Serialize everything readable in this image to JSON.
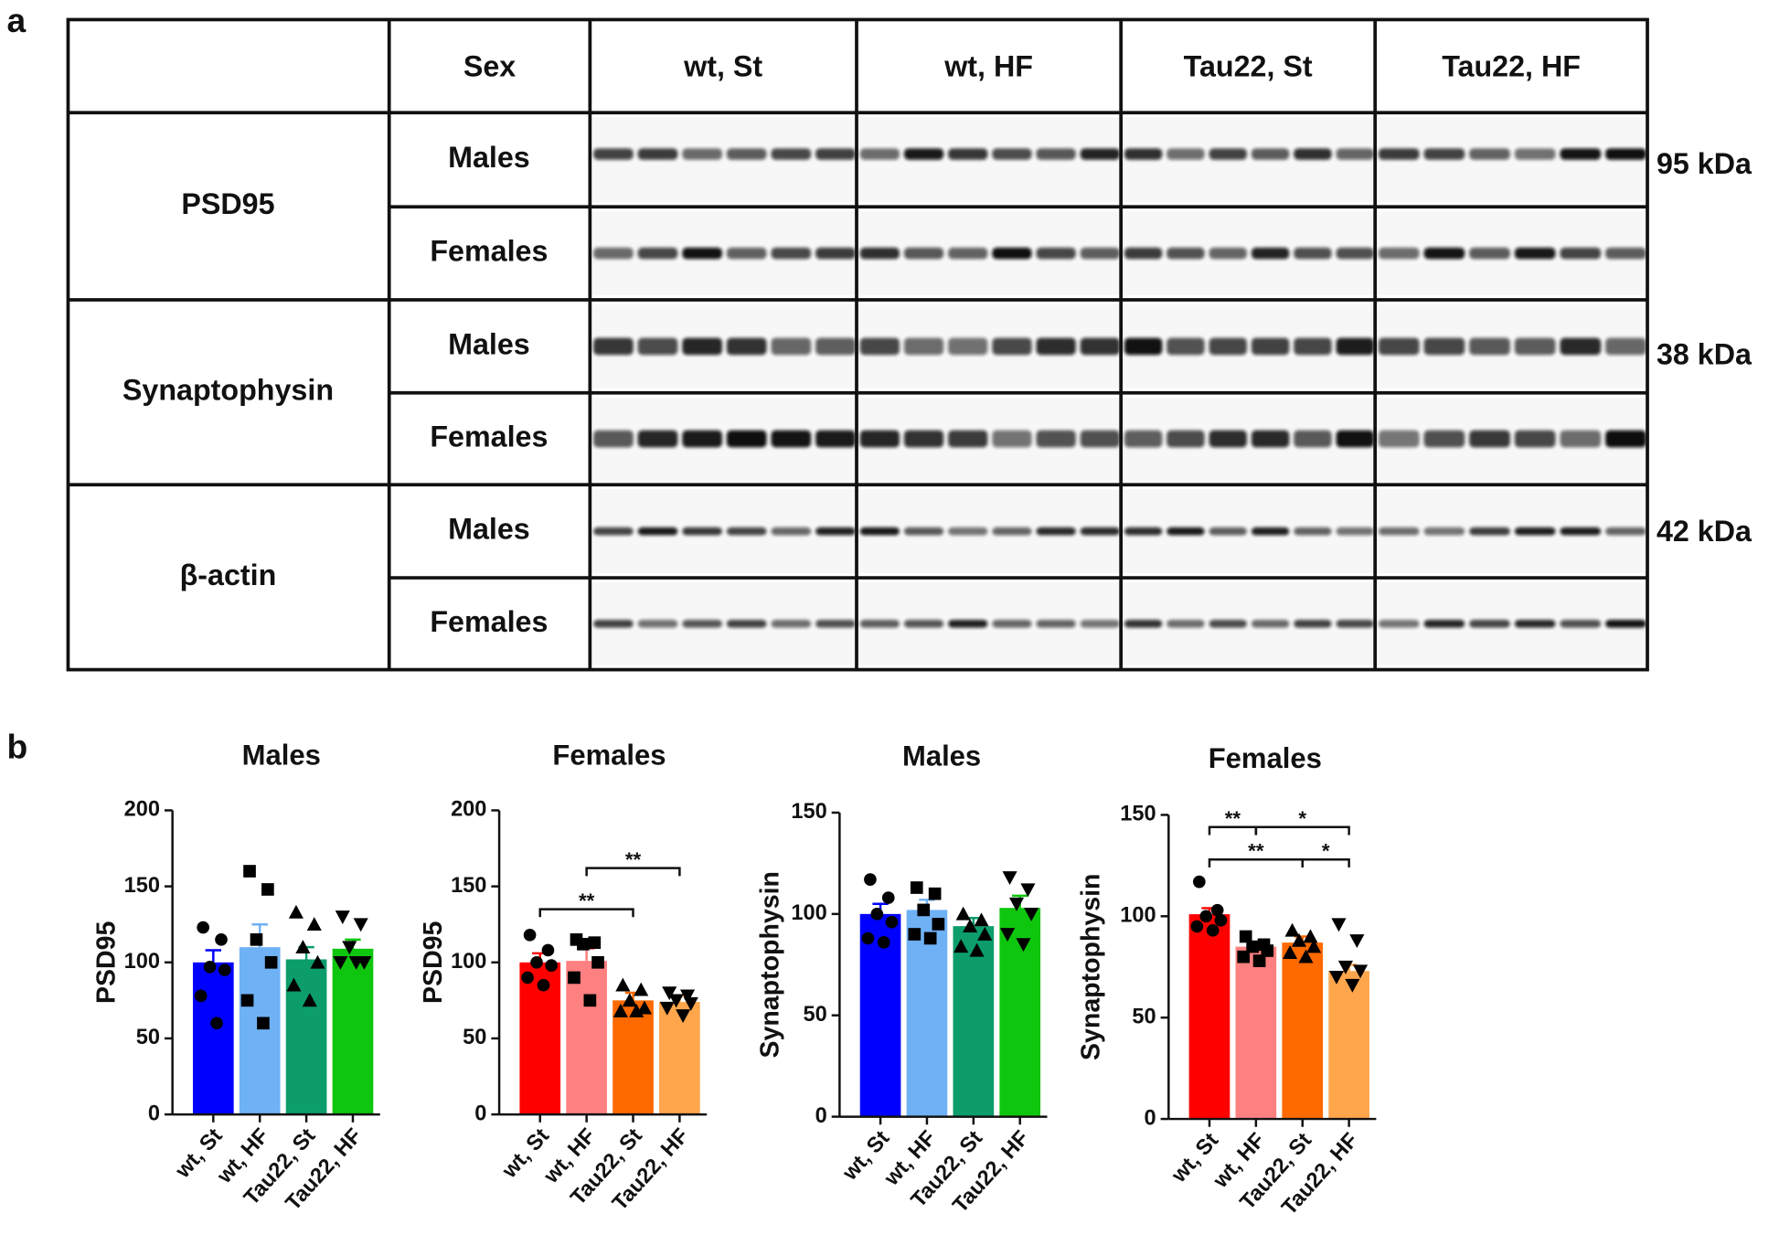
{
  "panel_labels": [
    "a",
    "b"
  ],
  "table": {
    "header": [
      "Sex",
      "wt, St",
      "wt, HF",
      "Tau22, St",
      "Tau22, HF"
    ],
    "rows": [
      {
        "protein": "PSD95",
        "sex": [
          "Males",
          "Females"
        ],
        "weight": "95 kDa"
      },
      {
        "protein": "Synaptophysin",
        "sex": [
          "Males",
          "Females"
        ],
        "weight": "38 kDa"
      },
      {
        "protein": "β-actin",
        "sex": [
          "Males",
          "Females"
        ],
        "weight": "42 kDa"
      }
    ]
  },
  "chart_data": [
    {
      "type": "bar",
      "title": "Males",
      "ylabel": "PSD95",
      "categories": [
        "wt, St",
        "wt, HF",
        "Tau22, St",
        "Tau22, HF"
      ],
      "values": [
        100,
        110,
        102,
        109
      ],
      "errors": [
        8,
        15,
        8,
        6
      ],
      "points": [
        [
          123,
          115,
          97,
          95,
          78,
          60
        ],
        [
          160,
          148,
          115,
          100,
          75,
          60
        ],
        [
          133,
          125,
          110,
          100,
          85,
          75
        ],
        [
          130,
          125,
          110,
          100,
          100,
          100
        ]
      ],
      "markers": [
        "circle",
        "square",
        "triangle",
        "triangle-down"
      ],
      "colors": [
        "#0000ff",
        "#6fb1f5",
        "#0c9d6b",
        "#0ec60e"
      ],
      "ylim": [
        0,
        200
      ],
      "yticks": [
        0,
        50,
        100,
        150,
        200
      ],
      "annotations": []
    },
    {
      "type": "bar",
      "title": "Females",
      "ylabel": "PSD95",
      "categories": [
        "wt, St",
        "wt, HF",
        "Tau22, St",
        "Tau22, HF"
      ],
      "values": [
        100,
        101,
        75,
        74
      ],
      "errors": [
        6,
        8,
        5,
        4
      ],
      "points": [
        [
          118,
          108,
          100,
          98,
          90,
          85
        ],
        [
          115,
          113,
          112,
          100,
          90,
          75
        ],
        [
          85,
          82,
          75,
          70,
          68,
          68
        ],
        [
          80,
          78,
          75,
          73,
          70,
          65
        ]
      ],
      "markers": [
        "circle",
        "square",
        "triangle",
        "triangle-down"
      ],
      "colors": [
        "#ff0000",
        "#ff8080",
        "#ff6a00",
        "#ffa64d"
      ],
      "ylim": [
        0,
        200
      ],
      "yticks": [
        0,
        50,
        100,
        150,
        200
      ],
      "annotations": [
        {
          "from": "wt, St",
          "to": "Tau22, St",
          "y": 135,
          "label": "**"
        },
        {
          "from": "wt, HF",
          "to": "Tau22, HF",
          "y": 162,
          "label": "**"
        }
      ]
    },
    {
      "type": "bar",
      "title": "Males",
      "ylabel": "Synaptophysin",
      "categories": [
        "wt, St",
        "wt, HF",
        "Tau22, St",
        "Tau22, HF"
      ],
      "values": [
        100,
        102,
        94,
        103
      ],
      "errors": [
        5,
        5,
        4,
        6
      ],
      "points": [
        [
          117,
          108,
          100,
          96,
          88,
          86
        ],
        [
          113,
          110,
          102,
          95,
          90,
          88
        ],
        [
          100,
          97,
          94,
          90,
          84,
          82
        ],
        [
          118,
          112,
          105,
          100,
          90,
          85
        ]
      ],
      "markers": [
        "circle",
        "square",
        "triangle",
        "triangle-down"
      ],
      "colors": [
        "#0000ff",
        "#6fb1f5",
        "#0c9d6b",
        "#0ec60e"
      ],
      "ylim": [
        0,
        150
      ],
      "yticks": [
        0,
        50,
        100,
        150
      ],
      "annotations": []
    },
    {
      "type": "bar",
      "title": "Females",
      "ylabel": "Synaptophysin",
      "categories": [
        "wt, St",
        "wt, HF",
        "Tau22, St",
        "Tau22, HF"
      ],
      "values": [
        101,
        85,
        87,
        73
      ],
      "errors": [
        3,
        2,
        3,
        3
      ],
      "points": [
        [
          117,
          103,
          100,
          98,
          95,
          93
        ],
        [
          90,
          86,
          85,
          83,
          80,
          78
        ],
        [
          93,
          90,
          88,
          85,
          82,
          80
        ],
        [
          96,
          88,
          75,
          73,
          70,
          66
        ]
      ],
      "markers": [
        "circle",
        "square",
        "triangle",
        "triangle-down"
      ],
      "colors": [
        "#ff0000",
        "#ff8080",
        "#ff6a00",
        "#ffa64d"
      ],
      "ylim": [
        0,
        150
      ],
      "yticks": [
        0,
        50,
        100,
        150
      ],
      "annotations": [
        {
          "from": "wt, St",
          "to": "wt, HF",
          "y": 144,
          "label": "**"
        },
        {
          "from": "wt, HF",
          "to": "Tau22, HF",
          "y": 144,
          "label": "*"
        },
        {
          "from": "wt, St",
          "to": "Tau22, St",
          "y": 128,
          "label": "**"
        },
        {
          "from": "Tau22, St",
          "to": "Tau22, HF",
          "y": 128,
          "label": "*"
        }
      ]
    }
  ]
}
